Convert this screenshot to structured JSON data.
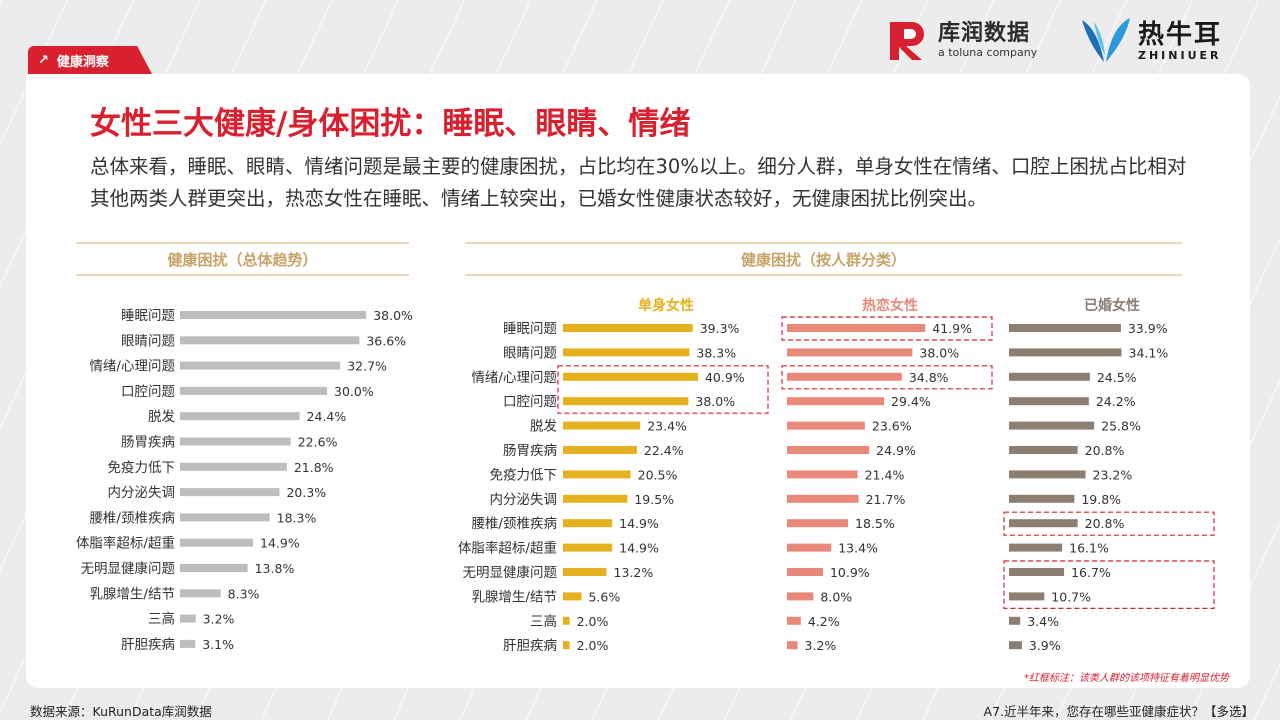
{
  "tag": "健康洞察",
  "logos": {
    "kurun_cn": "库润数据",
    "kurun_en": "a toluna company",
    "zhiniuer_cn": "热牛耳",
    "zhiniuer_en": "ZHINIUER"
  },
  "title": "女性三大健康/身体困扰：睡眠、眼睛、情绪",
  "description": "总体来看，睡眠、眼睛、情绪问题是最主要的健康困扰，占比均在30%以上。细分人群，单身女性在情绪、口腔上困扰占比相对其他两类人群更突出，热恋女性在睡眠、情绪上较突出，已婚女性健康状态较好，无健康困扰比例突出。",
  "left_header": "健康困扰（总体趋势）",
  "right_header": "健康困扰（按人群分类）",
  "footnote": "*红框标注：该类人群的该项特征有着明显优势",
  "source": "数据来源：KuRunData库润数据",
  "question": "A7.近半年来，您存在哪些亚健康症状？【多选】",
  "colors": {
    "accent": "#d9202f",
    "overall": "#bdbdbd",
    "single": "#e6b11f",
    "dating": "#e9897a",
    "married": "#8c7e70",
    "header_gold": "#c6a46a"
  },
  "chart_data": [
    {
      "type": "bar",
      "orientation": "horizontal",
      "title": "健康困扰（总体趋势）",
      "categories": [
        "睡眠问题",
        "眼睛问题",
        "情绪/心理问题",
        "口腔问题",
        "脱发",
        "肠胃疾病",
        "免疫力低下",
        "内分泌失调",
        "腰椎/颈椎疾病",
        "体脂率超标/超重",
        "无明显健康问题",
        "乳腺增生/结节",
        "三高",
        "肝胆疾病"
      ],
      "values": [
        38.0,
        36.6,
        32.7,
        30.0,
        24.4,
        22.6,
        21.8,
        20.3,
        18.3,
        14.9,
        13.8,
        8.3,
        3.2,
        3.1
      ],
      "unit": "%"
    },
    {
      "type": "bar",
      "orientation": "horizontal",
      "title": "健康困扰（按人群分类）",
      "categories": [
        "睡眠问题",
        "眼睛问题",
        "情绪/心理问题",
        "口腔问题",
        "脱发",
        "肠胃疾病",
        "免疫力低下",
        "内分泌失调",
        "腰椎/颈椎疾病",
        "体脂率超标/超重",
        "无明显健康问题",
        "乳腺增生/结节",
        "三高",
        "肝胆疾病"
      ],
      "unit": "%",
      "series": [
        {
          "name": "单身女性",
          "values": [
            39.3,
            38.3,
            40.9,
            38.0,
            23.4,
            22.4,
            20.5,
            19.5,
            14.9,
            14.9,
            13.2,
            5.6,
            2.0,
            2.0
          ],
          "highlighted": [
            "情绪/心理问题",
            "口腔问题"
          ]
        },
        {
          "name": "热恋女性",
          "values": [
            41.9,
            38.0,
            34.8,
            29.4,
            23.6,
            24.9,
            21.4,
            21.7,
            18.5,
            13.4,
            10.9,
            8.0,
            4.2,
            3.2
          ],
          "highlighted": [
            "睡眠问题",
            "情绪/心理问题"
          ]
        },
        {
          "name": "已婚女性",
          "values": [
            33.9,
            34.1,
            24.5,
            24.2,
            25.8,
            20.8,
            23.2,
            19.8,
            20.8,
            16.1,
            16.7,
            10.7,
            3.4,
            3.9
          ],
          "highlighted": [
            "腰椎/颈椎疾病",
            "无明显健康问题",
            "乳腺增生/结节"
          ]
        }
      ]
    }
  ]
}
